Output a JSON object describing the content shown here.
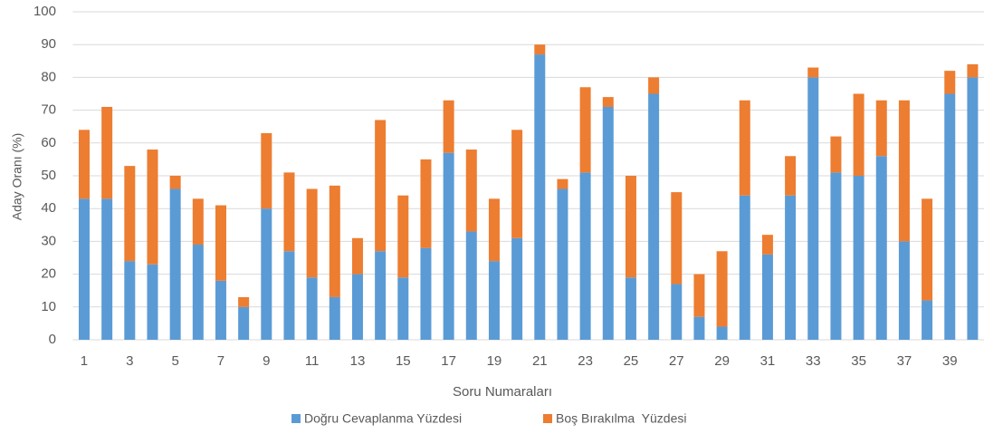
{
  "chart_data": {
    "type": "stacked_bar",
    "x_label": "Soru Numaraları",
    "y_label": "Aday Oranı (%)",
    "categories": [
      "1",
      null,
      "3",
      null,
      "5",
      null,
      "7",
      null,
      "9",
      null,
      "11",
      null,
      "13",
      null,
      "15",
      null,
      "17",
      null,
      "19",
      null,
      "21",
      null,
      "23",
      null,
      "25",
      null,
      "27",
      null,
      "29",
      null,
      "31",
      null,
      "33",
      null,
      "35",
      null,
      "37",
      null,
      "39",
      null
    ],
    "series": [
      {
        "name": "Doğru Cevaplanma Yüzdesi",
        "color": "#5b9bd5",
        "values": [
          43,
          43,
          24,
          23,
          46,
          29,
          18,
          10,
          40,
          27,
          19,
          13,
          20,
          27,
          19,
          28,
          57,
          33,
          24,
          31,
          87,
          46,
          51,
          71,
          19,
          75,
          17,
          7,
          4,
          44,
          26,
          44,
          80,
          51,
          50,
          56,
          30,
          12,
          75,
          80
        ]
      },
      {
        "name": "Boş Bırakılma  Yüzdesi",
        "color": "#ed7d31",
        "values": [
          21,
          28,
          29,
          35,
          4,
          14,
          23,
          3,
          23,
          24,
          27,
          34,
          11,
          40,
          25,
          27,
          16,
          25,
          19,
          33,
          3,
          3,
          26,
          3,
          31,
          5,
          28,
          13,
          23,
          29,
          6,
          12,
          3,
          11,
          25,
          17,
          43,
          31,
          7,
          4
        ]
      }
    ],
    "ylim": [
      0,
      100
    ],
    "yticks": [
      0,
      10,
      20,
      30,
      40,
      50,
      60,
      70,
      80,
      90,
      100
    ],
    "grid": true,
    "legend": "bottom"
  }
}
